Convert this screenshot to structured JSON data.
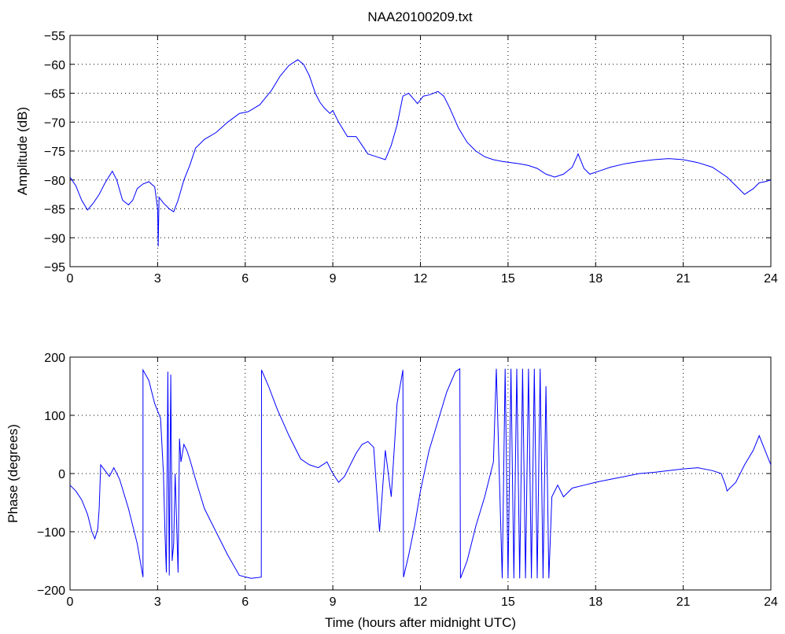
{
  "title": "NAA20100209.txt",
  "chart_data": [
    {
      "type": "line",
      "title": "NAA20100209.txt",
      "xlabel": "",
      "ylabel": "Amplitude (dB)",
      "xlim": [
        0,
        24
      ],
      "ylim": [
        -95,
        -55
      ],
      "xticks": [
        0,
        3,
        6,
        9,
        12,
        15,
        18,
        21,
        24
      ],
      "yticks": [
        -95,
        -90,
        -85,
        -80,
        -75,
        -70,
        -65,
        -60,
        -55
      ],
      "grid": true,
      "color": "#0000ff",
      "series": [
        {
          "x": [
            0,
            0.2,
            0.4,
            0.6,
            0.8,
            1.0,
            1.2,
            1.45,
            1.6,
            1.8,
            2.0,
            2.15,
            2.3,
            2.5,
            2.7,
            2.9,
            3.0,
            3.02,
            3.05,
            3.2,
            3.4,
            3.55,
            3.7,
            3.9,
            4.1,
            4.3,
            4.6,
            5.0,
            5.4,
            5.8,
            6.1,
            6.5,
            6.9,
            7.2,
            7.5,
            7.8,
            8.0,
            8.2,
            8.4,
            8.55,
            8.7,
            8.9,
            9.0,
            9.2,
            9.5,
            9.8,
            10.0,
            10.2,
            10.5,
            10.8,
            11.0,
            11.2,
            11.4,
            11.6,
            11.9,
            12.1,
            12.3,
            12.6,
            12.8,
            13.0,
            13.3,
            13.6,
            13.9,
            14.2,
            14.5,
            14.8,
            15.1,
            15.4,
            15.7,
            16.0,
            16.3,
            16.6,
            16.9,
            17.2,
            17.4,
            17.6,
            17.8,
            18.1,
            18.5,
            19.0,
            19.5,
            20.0,
            20.5,
            21.0,
            21.5,
            22.0,
            22.5,
            22.8,
            23.1,
            23.4,
            23.6,
            23.8,
            24.0
          ],
          "y": [
            -79.5,
            -81,
            -83.5,
            -85.2,
            -84,
            -82.5,
            -80.5,
            -78.5,
            -80,
            -83.5,
            -84.3,
            -83.5,
            -81.5,
            -80.7,
            -80.3,
            -81.2,
            -85,
            -91.5,
            -83,
            -84,
            -85,
            -85.5,
            -83.5,
            -80,
            -77.5,
            -74.5,
            -73,
            -71.8,
            -70,
            -68.5,
            -68.2,
            -67,
            -64.5,
            -62,
            -60.2,
            -59.2,
            -60,
            -62,
            -65,
            -66.5,
            -67.5,
            -68.5,
            -68,
            -70,
            -72.5,
            -72.5,
            -74,
            -75.5,
            -76,
            -76.5,
            -74,
            -70.5,
            -65.5,
            -65,
            -66.8,
            -65.5,
            -65.3,
            -64.7,
            -65.5,
            -67.5,
            -71,
            -73.5,
            -75,
            -76,
            -76.5,
            -76.8,
            -77,
            -77.2,
            -77.5,
            -78,
            -79,
            -79.5,
            -79,
            -77.8,
            -75.5,
            -78,
            -79,
            -78.5,
            -77.8,
            -77.2,
            -76.8,
            -76.5,
            -76.3,
            -76.5,
            -77,
            -77.8,
            -79.5,
            -81,
            -82.5,
            -81.5,
            -80.5,
            -80.3,
            -80
          ]
        }
      ]
    },
    {
      "type": "line",
      "title": "",
      "xlabel": "Time (hours after midnight UTC)",
      "ylabel": "Phase (degrees)",
      "xlim": [
        0,
        24
      ],
      "ylim": [
        -200,
        200
      ],
      "xticks": [
        0,
        3,
        6,
        9,
        12,
        15,
        18,
        21,
        24
      ],
      "yticks": [
        -200,
        -100,
        0,
        100,
        200
      ],
      "grid": true,
      "color": "#0000ff",
      "series": [
        {
          "x": [
            0,
            0.2,
            0.4,
            0.6,
            0.75,
            0.85,
            0.95,
            1.0,
            1.05,
            1.2,
            1.35,
            1.5,
            1.7,
            2.0,
            2.3,
            2.5,
            2.5,
            2.7,
            2.9,
            3.1,
            3.2,
            3.25,
            3.3,
            3.35,
            3.4,
            3.45,
            3.5,
            3.55,
            3.6,
            3.7,
            3.75,
            3.8,
            3.9,
            4.0,
            4.1,
            4.3,
            4.6,
            5.0,
            5.4,
            5.8,
            6.2,
            6.55,
            6.56,
            6.8,
            7.1,
            7.5,
            7.9,
            8.2,
            8.5,
            8.8,
            9.0,
            9.2,
            9.4,
            9.6,
            9.8,
            10.0,
            10.2,
            10.4,
            10.6,
            10.8,
            11.0,
            11.2,
            11.4,
            11.42,
            11.6,
            11.8,
            12.0,
            12.3,
            12.6,
            12.9,
            13.2,
            13.35,
            13.37,
            13.6,
            13.9,
            14.2,
            14.5,
            14.6,
            14.8,
            14.9,
            15.0,
            15.1,
            15.2,
            15.3,
            15.4,
            15.5,
            15.6,
            15.7,
            15.8,
            15.9,
            16.0,
            16.1,
            16.2,
            16.3,
            16.4,
            16.5,
            16.7,
            16.9,
            17.2,
            17.6,
            18.0,
            18.5,
            19.0,
            19.5,
            20.0,
            20.5,
            21.0,
            21.5,
            22.0,
            22.3,
            22.45,
            22.5,
            22.8,
            23.1,
            23.4,
            23.6,
            23.8,
            24.0
          ],
          "y": [
            -20,
            -30,
            -45,
            -70,
            -100,
            -112,
            -95,
            -60,
            15,
            5,
            -5,
            10,
            -10,
            -60,
            -120,
            -178,
            178,
            160,
            120,
            95,
            0,
            -100,
            -170,
            175,
            -175,
            170,
            -150,
            -120,
            0,
            -170,
            60,
            20,
            50,
            40,
            25,
            -10,
            -60,
            -100,
            -140,
            -175,
            -180,
            -178,
            178,
            150,
            110,
            65,
            25,
            15,
            10,
            20,
            0,
            -15,
            -5,
            15,
            35,
            50,
            55,
            45,
            -100,
            40,
            -40,
            120,
            178,
            -178,
            -140,
            -90,
            -30,
            40,
            90,
            140,
            175,
            180,
            -180,
            -150,
            -90,
            -40,
            20,
            180,
            -180,
            180,
            -180,
            180,
            -180,
            180,
            -180,
            180,
            -180,
            180,
            -180,
            180,
            -180,
            180,
            -180,
            150,
            -180,
            -40,
            -20,
            -40,
            -25,
            -20,
            -15,
            -10,
            -5,
            0,
            2,
            5,
            8,
            10,
            5,
            0,
            -20,
            -30,
            -15,
            15,
            40,
            65,
            40,
            15
          ]
        }
      ]
    }
  ]
}
